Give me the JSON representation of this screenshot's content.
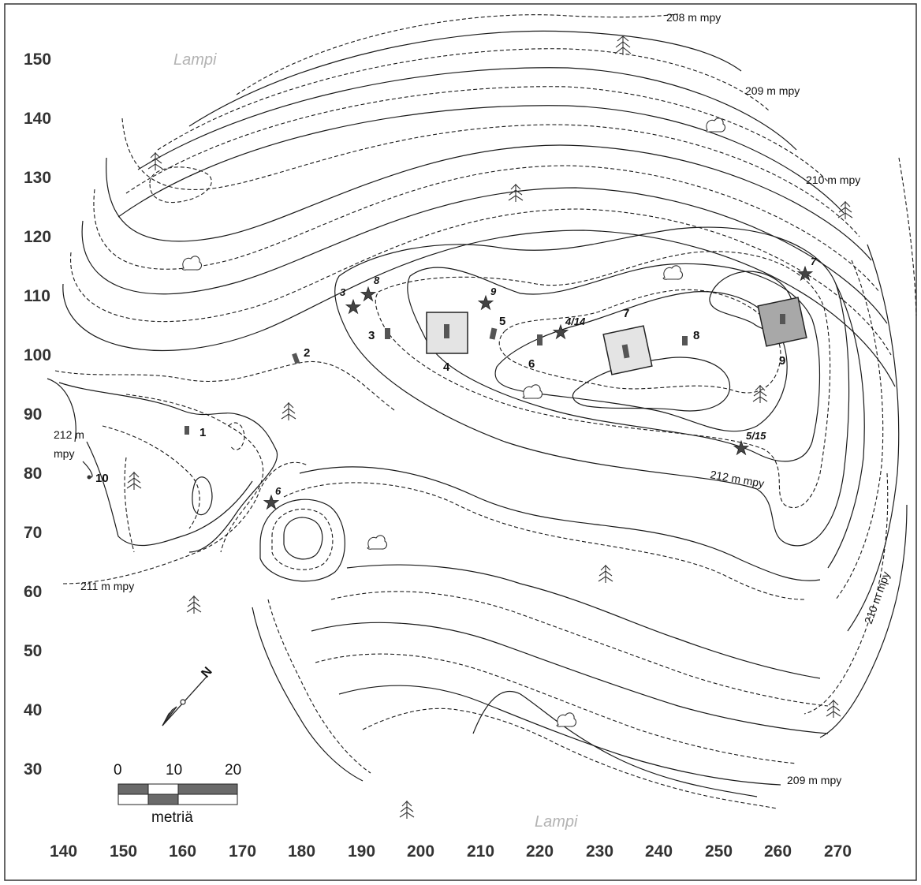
{
  "map": {
    "x_axis": {
      "ticks": [
        "140",
        "150",
        "160",
        "170",
        "180",
        "190",
        "200",
        "210",
        "220",
        "230",
        "240",
        "250",
        "260",
        "270"
      ]
    },
    "y_axis": {
      "ticks": [
        "150",
        "140",
        "130",
        "120",
        "110",
        "100",
        "90",
        "80",
        "70",
        "60",
        "50",
        "40",
        "30"
      ]
    },
    "lakes": [
      {
        "id": "lake-north",
        "label": "Lampi"
      },
      {
        "id": "lake-south",
        "label": "Lampi"
      }
    ],
    "elevation_labels": [
      {
        "id": "elev-208",
        "text": "208 m mpy"
      },
      {
        "id": "elev-209-north",
        "text": "209 m mpy"
      },
      {
        "id": "elev-210-north",
        "text": "210 m mpy"
      },
      {
        "id": "elev-212-west-a",
        "text": "212 m"
      },
      {
        "id": "elev-212-west-b",
        "text": "mpy"
      },
      {
        "id": "elev-212-east",
        "text": "212 m mpy"
      },
      {
        "id": "elev-211",
        "text": "211 m mpy"
      },
      {
        "id": "elev-210-east",
        "text": "210 m mpy"
      },
      {
        "id": "elev-209-south",
        "text": "209 m mpy"
      }
    ],
    "sites": [
      {
        "num": "1"
      },
      {
        "num": "2"
      },
      {
        "num": "3"
      },
      {
        "num": "4"
      },
      {
        "num": "5"
      },
      {
        "num": "6"
      },
      {
        "num": "7"
      },
      {
        "num": "8"
      },
      {
        "num": "9"
      },
      {
        "num": "10"
      }
    ],
    "finds": [
      {
        "num": "3"
      },
      {
        "num": "8"
      },
      {
        "num": "9"
      },
      {
        "num": "4/14"
      },
      {
        "num": "7"
      },
      {
        "num": "5/15"
      },
      {
        "num": "6"
      }
    ],
    "scale_bar": {
      "labels": [
        "0",
        "10",
        "20"
      ],
      "unit": "metriä"
    },
    "north_arrow": {
      "label": "N"
    },
    "icons": [
      "conifer-tree-icon",
      "deciduous-bush-icon",
      "star-find-icon",
      "north-arrow-icon"
    ]
  }
}
